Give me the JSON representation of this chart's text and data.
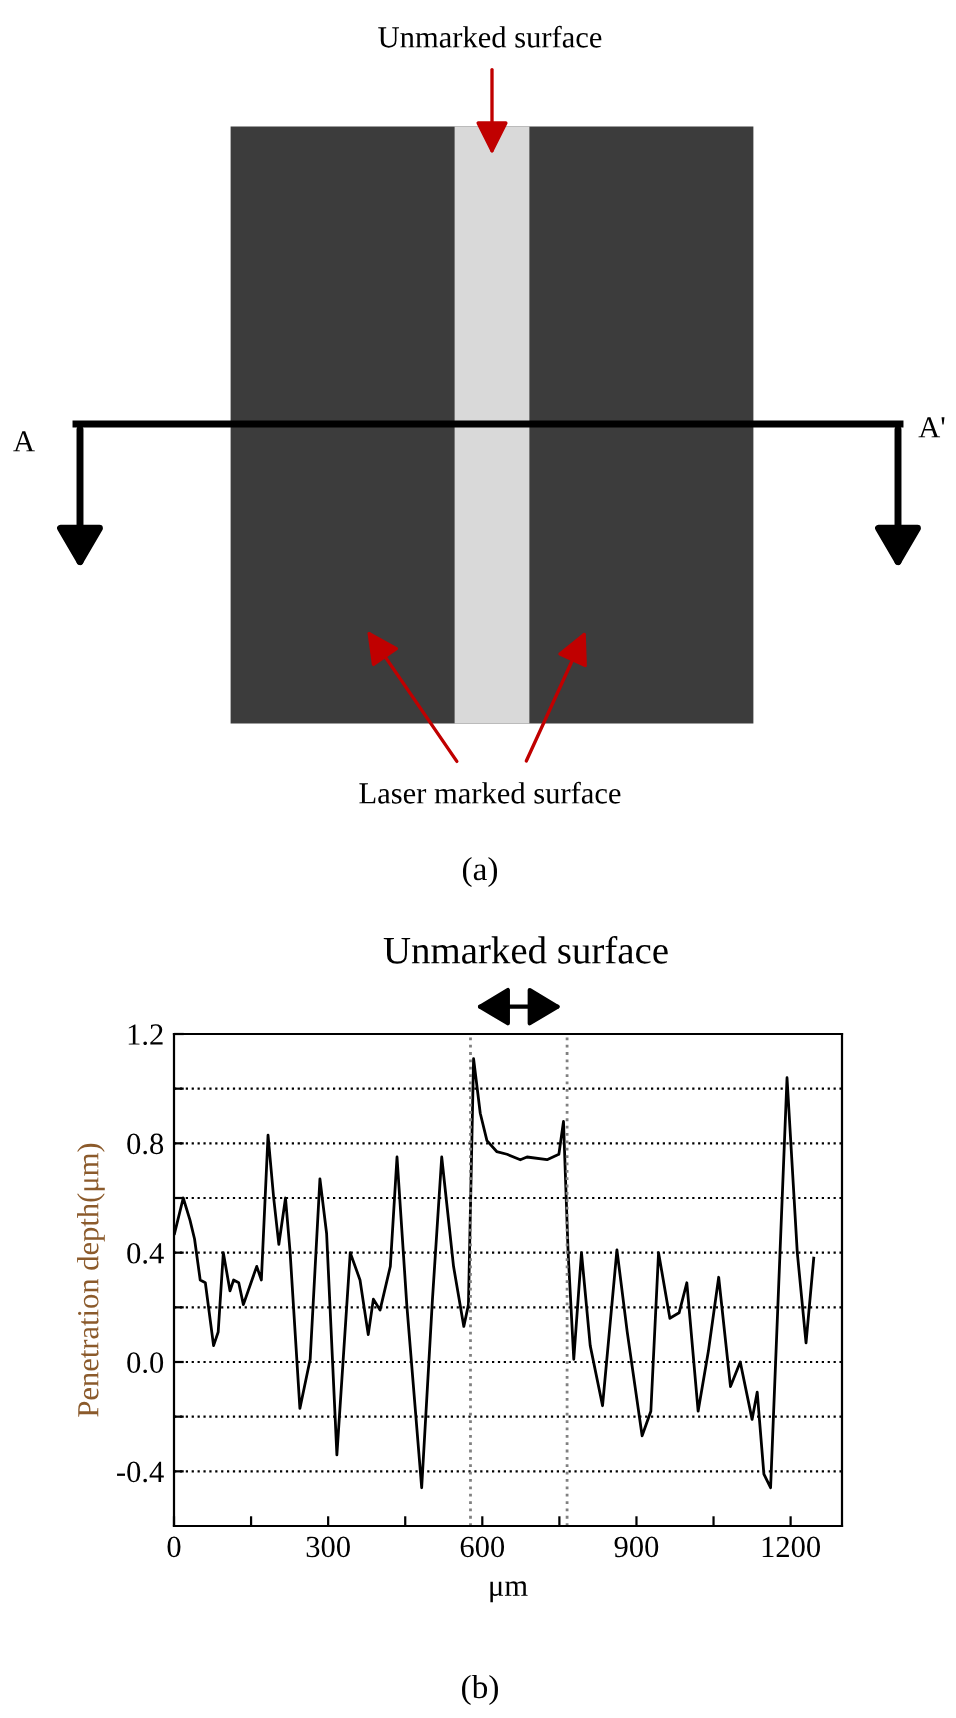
{
  "chart_data": {
    "type": "line",
    "xlabel": "μm",
    "ylabel": "Penetration depth(μm)",
    "annotations": [
      "Unmarked surface",
      "A",
      "A'",
      "Laser marked surface",
      "(a)",
      "Unmarked surface",
      "(b)"
    ],
    "x": [
      1,
      18,
      31,
      40,
      51,
      61,
      77,
      86,
      96,
      109,
      116,
      126,
      135,
      148,
      161,
      170,
      183,
      194,
      204,
      217,
      226,
      245,
      265,
      284,
      297,
      317,
      343,
      362,
      378,
      388,
      401,
      421,
      434,
      453,
      482,
      503,
      521,
      544,
      564,
      573,
      583,
      596,
      609,
      628,
      648,
      674,
      687,
      726,
      749,
      758,
      767,
      778,
      793,
      810,
      834,
      862,
      882,
      911,
      928,
      943,
      965,
      983,
      998,
      1020,
      1040,
      1060,
      1083,
      1102,
      1125,
      1135,
      1148,
      1161,
      1193,
      1213,
      1230,
      1245
    ],
    "series": [
      {
        "color": "#000000",
        "values": [
          0.47,
          0.6,
          0.52,
          0.45,
          0.3,
          0.29,
          0.06,
          0.11,
          0.4,
          0.26,
          0.3,
          0.29,
          0.21,
          0.28,
          0.35,
          0.3,
          0.83,
          0.6,
          0.43,
          0.6,
          0.4,
          -0.17,
          0.01,
          0.67,
          0.47,
          -0.34,
          0.4,
          0.3,
          0.1,
          0.23,
          0.19,
          0.35,
          0.75,
          0.21,
          -0.46,
          0.23,
          0.75,
          0.35,
          0.13,
          0.21,
          1.11,
          0.91,
          0.81,
          0.77,
          0.76,
          0.74,
          0.75,
          0.74,
          0.76,
          0.88,
          0.4,
          0.01,
          0.4,
          0.06,
          -0.16,
          0.41,
          0.11,
          -0.27,
          -0.18,
          0.4,
          0.16,
          0.18,
          0.29,
          -0.18,
          0.04,
          0.31,
          -0.09,
          0,
          -0.21,
          -0.11,
          -0.41,
          -0.46,
          1.04,
          0.4,
          0.07,
          0.38
        ]
      }
    ],
    "xlim": [
      0,
      1300
    ],
    "ylim": [
      -0.6,
      1.2
    ],
    "xticks": [
      0,
      {
        "value": 150,
        "label": null
      },
      300,
      {
        "value": 450,
        "label": null
      },
      600,
      {
        "value": 750,
        "label": null
      },
      900,
      {
        "value": 1050,
        "label": null
      },
      1200
    ],
    "yticks": [
      {
        "value": -0.4,
        "label": "-0.4"
      },
      {
        "value": -0.2,
        "label": null
      },
      {
        "value": 0,
        "label": "0.0"
      },
      {
        "value": 0.2,
        "label": null
      },
      0.4,
      {
        "value": 0.6,
        "label": null
      },
      0.8,
      {
        "value": 1.0,
        "label": null
      },
      1.2
    ],
    "grid": "y",
    "line_style": "solid",
    "marker": "none",
    "ref_lines": [
      {
        "axis": "x",
        "value": 577,
        "color": "#808080",
        "line_style": "dotted"
      },
      {
        "axis": "x",
        "value": 765,
        "color": "#808080",
        "line_style": "dotted"
      }
    ]
  }
}
